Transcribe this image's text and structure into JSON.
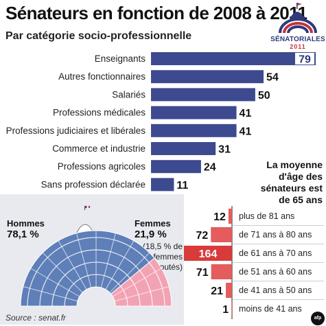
{
  "header": {
    "title": "Sénateurs en fonction de 2008 à 2011",
    "subtitle": "Par catégorie socio-professionnelle"
  },
  "logo": {
    "name": "SÉNATORIALES",
    "year": "2011"
  },
  "colors": {
    "bar": "#3d4a8f",
    "bar_highlight": "#2e3a7a",
    "women": "#f2a3b3",
    "men": "#5e7fb8",
    "age_bar": "#e45c5c",
    "age_bar_highlight": "#d93a3a",
    "panel": "#e8eaf0"
  },
  "chart_data": [
    {
      "type": "bar",
      "orientation": "horizontal",
      "categories": [
        "Enseignants",
        "Autres fonctionnaires",
        "Salariés",
        "Professions médicales",
        "Professions judiciaires et libérales",
        "Commerce et industrie",
        "Professions agricoles",
        "Sans profession déclarée"
      ],
      "values": [
        79,
        54,
        50,
        41,
        41,
        31,
        24,
        11
      ],
      "xlim": [
        0,
        79
      ]
    },
    {
      "type": "bar",
      "orientation": "horizontal",
      "title": "La moyenne d'âge des sénateurs est de 65 ans",
      "categories": [
        "plus de 81 ans",
        "de 71 ans à 80 ans",
        "de 61 ans à 70 ans",
        "de 51 ans à 60 ans",
        "de 41 ans à 50 ans",
        "moins de 41 ans"
      ],
      "values": [
        12,
        72,
        164,
        71,
        21,
        1
      ],
      "xlim": [
        0,
        164
      ]
    },
    {
      "type": "pie",
      "subtype": "half-donut (hemicycle)",
      "categories": [
        "Hommes",
        "Femmes"
      ],
      "values": [
        78.1,
        21.9
      ],
      "value_labels": [
        "78,1 %",
        "21,9 %"
      ],
      "note": "(18,5 % de femmes députés)"
    }
  ],
  "gender": {
    "men_label": "Hommes",
    "men_value": "78,1 %",
    "women_label": "Femmes",
    "women_value": "21,9 %",
    "women_note": "(18,5 % de femmes députés)"
  },
  "source": "Source : senat.fr",
  "agency_badge": "afp"
}
